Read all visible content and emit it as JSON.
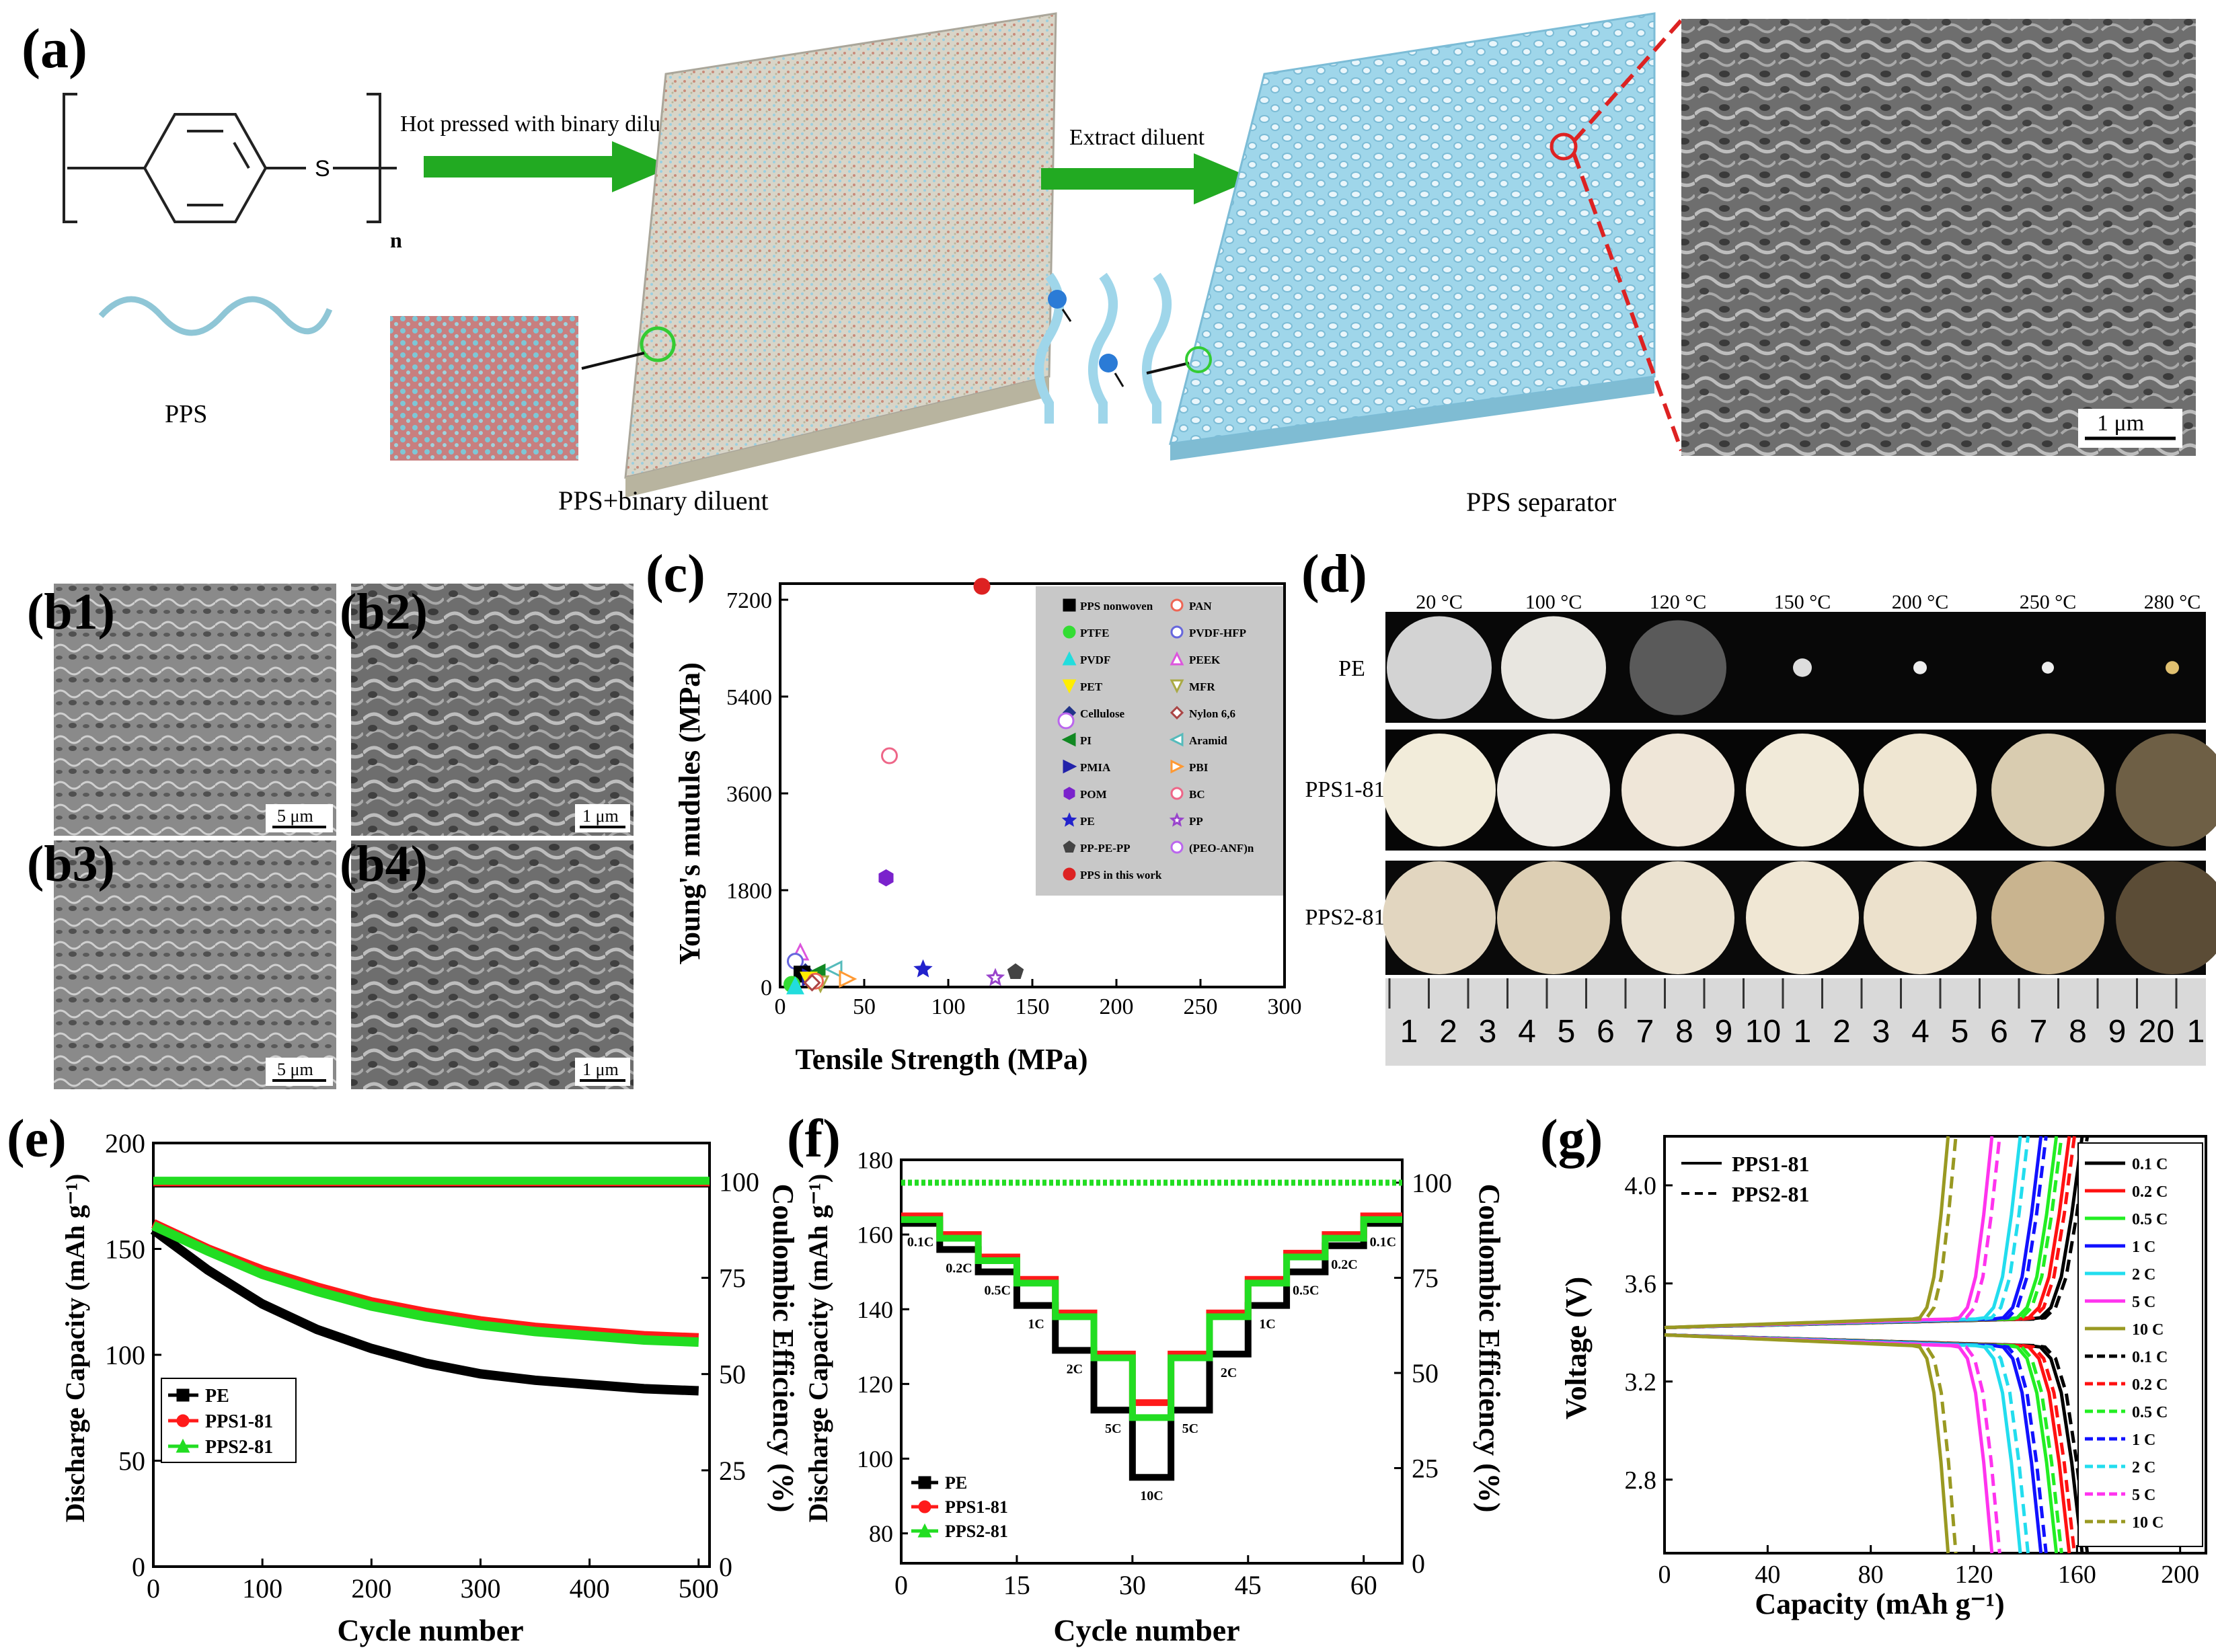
{
  "panels": {
    "a": {
      "label": "(a)",
      "step1": "Hot pressed with binary diluent",
      "step2": "Extract diluent",
      "repeat_n": "n",
      "atom_s": "S",
      "pps": "PPS",
      "mix": "PPS+binary diluent",
      "separator": "PPS separator",
      "scale": "1 μm"
    },
    "b": {
      "labels": [
        "(b1)",
        "(b2)",
        "(b3)",
        "(b4)"
      ],
      "scales": [
        "5 μm",
        "1 μm",
        "5 μm",
        "1 μm"
      ]
    },
    "c": {
      "label": "(c)"
    },
    "d": {
      "label": "(d)",
      "temps": [
        "20 °C",
        "100 °C",
        "120 °C",
        "150 °C",
        "200 °C",
        "250 °C",
        "280 °C"
      ],
      "rows": [
        "PE",
        "PPS1-81",
        "PPS2-81"
      ],
      "ruler": [
        "1",
        "2",
        "3",
        "4",
        "5",
        "6",
        "7",
        "8",
        "9",
        "10",
        "1",
        "2",
        "3",
        "4",
        "5",
        "6",
        "7",
        "8",
        "9",
        "20",
        "1"
      ]
    },
    "e": {
      "label": "(e)"
    },
    "f": {
      "label": "(f)"
    },
    "g": {
      "label": "(g)"
    }
  },
  "colors": {
    "pe": "#000000",
    "pps1": "#ff1a1a",
    "pps2": "#22dd22",
    "arrow": "#22aa22",
    "separator": "#8fcfe6"
  },
  "chart_data": [
    {
      "id": "c",
      "type": "scatter",
      "xlabel": "Tensile Strength (MPa)",
      "ylabel": "Young's mudules (MPa)",
      "xlim": [
        0,
        300
      ],
      "ylim": [
        0,
        7500
      ],
      "xticks": [
        "0",
        "50",
        "100",
        "150",
        "200",
        "250",
        "300"
      ],
      "yticks": [
        "0",
        "1800",
        "3600",
        "5400",
        "7200"
      ],
      "legend_left": [
        "PPS nonwoven",
        "PTFE",
        "PVDF",
        "PET",
        "Cellulose",
        "PI",
        "PMIA",
        "POM",
        "PE",
        "PP-PE-PP",
        "PPS in this work"
      ],
      "legend_right": [
        "PAN",
        "PVDF-HFP",
        "PEEK",
        "MFR",
        "Nylon 6,6",
        "Aramid",
        "PBI",
        "BC",
        "PP",
        "(PEO-ANF)n"
      ],
      "points": [
        {
          "name": "PPS in this work",
          "x": 120,
          "y": 7450,
          "color": "#dd2222",
          "shape": "circle",
          "fill": true
        },
        {
          "name": "(PEO-ANF)n",
          "x": 170,
          "y": 4950,
          "color": "#bb66ee",
          "shape": "circle",
          "fill": false
        },
        {
          "name": "BC",
          "x": 65,
          "y": 4300,
          "color": "#ee6688",
          "shape": "circle",
          "fill": false
        },
        {
          "name": "POM",
          "x": 63,
          "y": 2030,
          "color": "#7a22cc",
          "shape": "hexagon",
          "fill": true
        },
        {
          "name": "PP-PE-PP",
          "x": 140,
          "y": 280,
          "color": "#444444",
          "shape": "pentagon",
          "fill": true
        },
        {
          "name": "PE",
          "x": 85,
          "y": 330,
          "color": "#2222cc",
          "shape": "star",
          "fill": true
        },
        {
          "name": "PP",
          "x": 128,
          "y": 170,
          "color": "#9944cc",
          "shape": "star",
          "fill": false
        },
        {
          "name": "PEEK",
          "x": 12,
          "y": 650,
          "color": "#dd55dd",
          "shape": "triangle",
          "fill": false
        },
        {
          "name": "PVDF-HFP",
          "x": 9,
          "y": 480,
          "color": "#6666dd",
          "shape": "circle",
          "fill": false
        },
        {
          "name": "Aramid",
          "x": 32,
          "y": 330,
          "color": "#55bbbb",
          "shape": "triangle-left",
          "fill": false
        },
        {
          "name": "Cellulose",
          "x": 15,
          "y": 280,
          "color": "#223388",
          "shape": "diamond",
          "fill": true
        },
        {
          "name": "PI",
          "x": 22,
          "y": 270,
          "color": "#118822",
          "shape": "triangle-left",
          "fill": true
        },
        {
          "name": "PPS nonwoven",
          "x": 13,
          "y": 240,
          "color": "#000000",
          "shape": "square",
          "fill": true
        },
        {
          "name": "PMIA",
          "x": 18,
          "y": 180,
          "color": "#2222aa",
          "shape": "triangle-right",
          "fill": true
        },
        {
          "name": "PBI",
          "x": 40,
          "y": 150,
          "color": "#ff9933",
          "shape": "triangle-right",
          "fill": false
        },
        {
          "name": "PET",
          "x": 17,
          "y": 130,
          "color": "#ffee00",
          "shape": "triangle-down",
          "fill": true
        },
        {
          "name": "MFR",
          "x": 24,
          "y": 60,
          "color": "#aaaa44",
          "shape": "triangle-down",
          "fill": false
        },
        {
          "name": "PAN",
          "x": 21,
          "y": 110,
          "color": "#ee6655",
          "shape": "circle",
          "fill": false
        },
        {
          "name": "Nylon 6,6",
          "x": 19,
          "y": 80,
          "color": "#aa4444",
          "shape": "diamond",
          "fill": false
        },
        {
          "name": "PTFE",
          "x": 7,
          "y": 50,
          "color": "#33dd33",
          "shape": "circle",
          "fill": true
        },
        {
          "name": "PVDF",
          "x": 9,
          "y": 20,
          "color": "#22dddd",
          "shape": "triangle",
          "fill": true
        }
      ]
    },
    {
      "id": "e",
      "type": "line",
      "xlabel": "Cycle number",
      "ylabel": "Discharge Capacity (mAh g⁻¹)",
      "y2label": "Coulombic Efficiency (%)",
      "xlim": [
        0,
        510
      ],
      "ylim": [
        0,
        200
      ],
      "y2lim": [
        0,
        110
      ],
      "xticks": [
        "0",
        "100",
        "200",
        "300",
        "400",
        "500"
      ],
      "yticks": [
        "0",
        "50",
        "100",
        "150",
        "200"
      ],
      "y2ticks": [
        "0",
        "25",
        "50",
        "75",
        "100"
      ],
      "x": [
        0,
        50,
        100,
        150,
        200,
        250,
        300,
        350,
        400,
        450,
        500
      ],
      "series": [
        {
          "name": "PE",
          "values": [
            159,
            140,
            124,
            112,
            103,
            96,
            91,
            88,
            86,
            84,
            83
          ],
          "ce": 99.5
        },
        {
          "name": "PPS1-81",
          "values": [
            162,
            150,
            140,
            132,
            125,
            120,
            116,
            113,
            111,
            109,
            108
          ],
          "ce": 99.8
        },
        {
          "name": "PPS2-81",
          "values": [
            161,
            149,
            138,
            130,
            123,
            118,
            114,
            111,
            109,
            107,
            106
          ],
          "ce": 100.2
        }
      ]
    },
    {
      "id": "f",
      "type": "line",
      "xlabel": "Cycle number",
      "ylabel": "Discharge Capacity (mAh g⁻¹)",
      "y2label": "Coulombic Efficiency (%)",
      "xlim": [
        0,
        65
      ],
      "ylim": [
        72,
        180
      ],
      "y2lim": [
        0,
        106
      ],
      "xticks": [
        "0",
        "15",
        "30",
        "45",
        "60"
      ],
      "yticks": [
        "80",
        "100",
        "120",
        "140",
        "160",
        "180"
      ],
      "y2ticks": [
        "0",
        "25",
        "50",
        "75",
        "100"
      ],
      "rates": [
        "0.1C",
        "0.2C",
        "0.5C",
        "1C",
        "2C",
        "5C",
        "10C",
        "5C",
        "2C",
        "1C",
        "0.5C",
        "0.2C",
        "0.1C"
      ],
      "series": [
        {
          "name": "PE",
          "values": [
            163,
            156,
            150,
            141,
            129,
            113,
            95,
            113,
            128,
            141,
            150,
            157,
            163
          ],
          "ce": 100
        },
        {
          "name": "PPS1-81",
          "values": [
            165,
            160,
            154,
            148,
            139,
            128,
            115,
            128,
            139,
            148,
            155,
            160,
            165
          ],
          "ce": 100
        },
        {
          "name": "PPS2-81",
          "values": [
            164,
            159,
            153,
            147,
            138,
            127,
            111,
            127,
            138,
            147,
            154,
            159,
            164
          ],
          "ce": 100
        }
      ]
    },
    {
      "id": "g",
      "type": "line",
      "xlabel": "Capacity (mAh g⁻¹)",
      "ylabel": "Voltage (V)",
      "xlim": [
        0,
        210
      ],
      "ylim": [
        2.5,
        4.2
      ],
      "xticks": [
        "0",
        "40",
        "80",
        "120",
        "160",
        "200"
      ],
      "yticks": [
        "2.8",
        "3.2",
        "3.6",
        "4.0"
      ],
      "legend_styles": [
        "PPS1-81",
        "PPS2-81"
      ],
      "rates": [
        "0.1 C",
        "0.2 C",
        "0.5 C",
        "1 C",
        "2 C",
        "5 C",
        "10 C"
      ],
      "rate_colors": [
        "#000000",
        "#ff1111",
        "#22ee22",
        "#1111ff",
        "#22ddee",
        "#ff33ee",
        "#999922"
      ],
      "capacity_pps1": [
        162,
        157,
        152,
        146,
        138,
        127,
        110
      ],
      "capacity_pps2": [
        164,
        159,
        154,
        148,
        141,
        130,
        113
      ]
    }
  ]
}
